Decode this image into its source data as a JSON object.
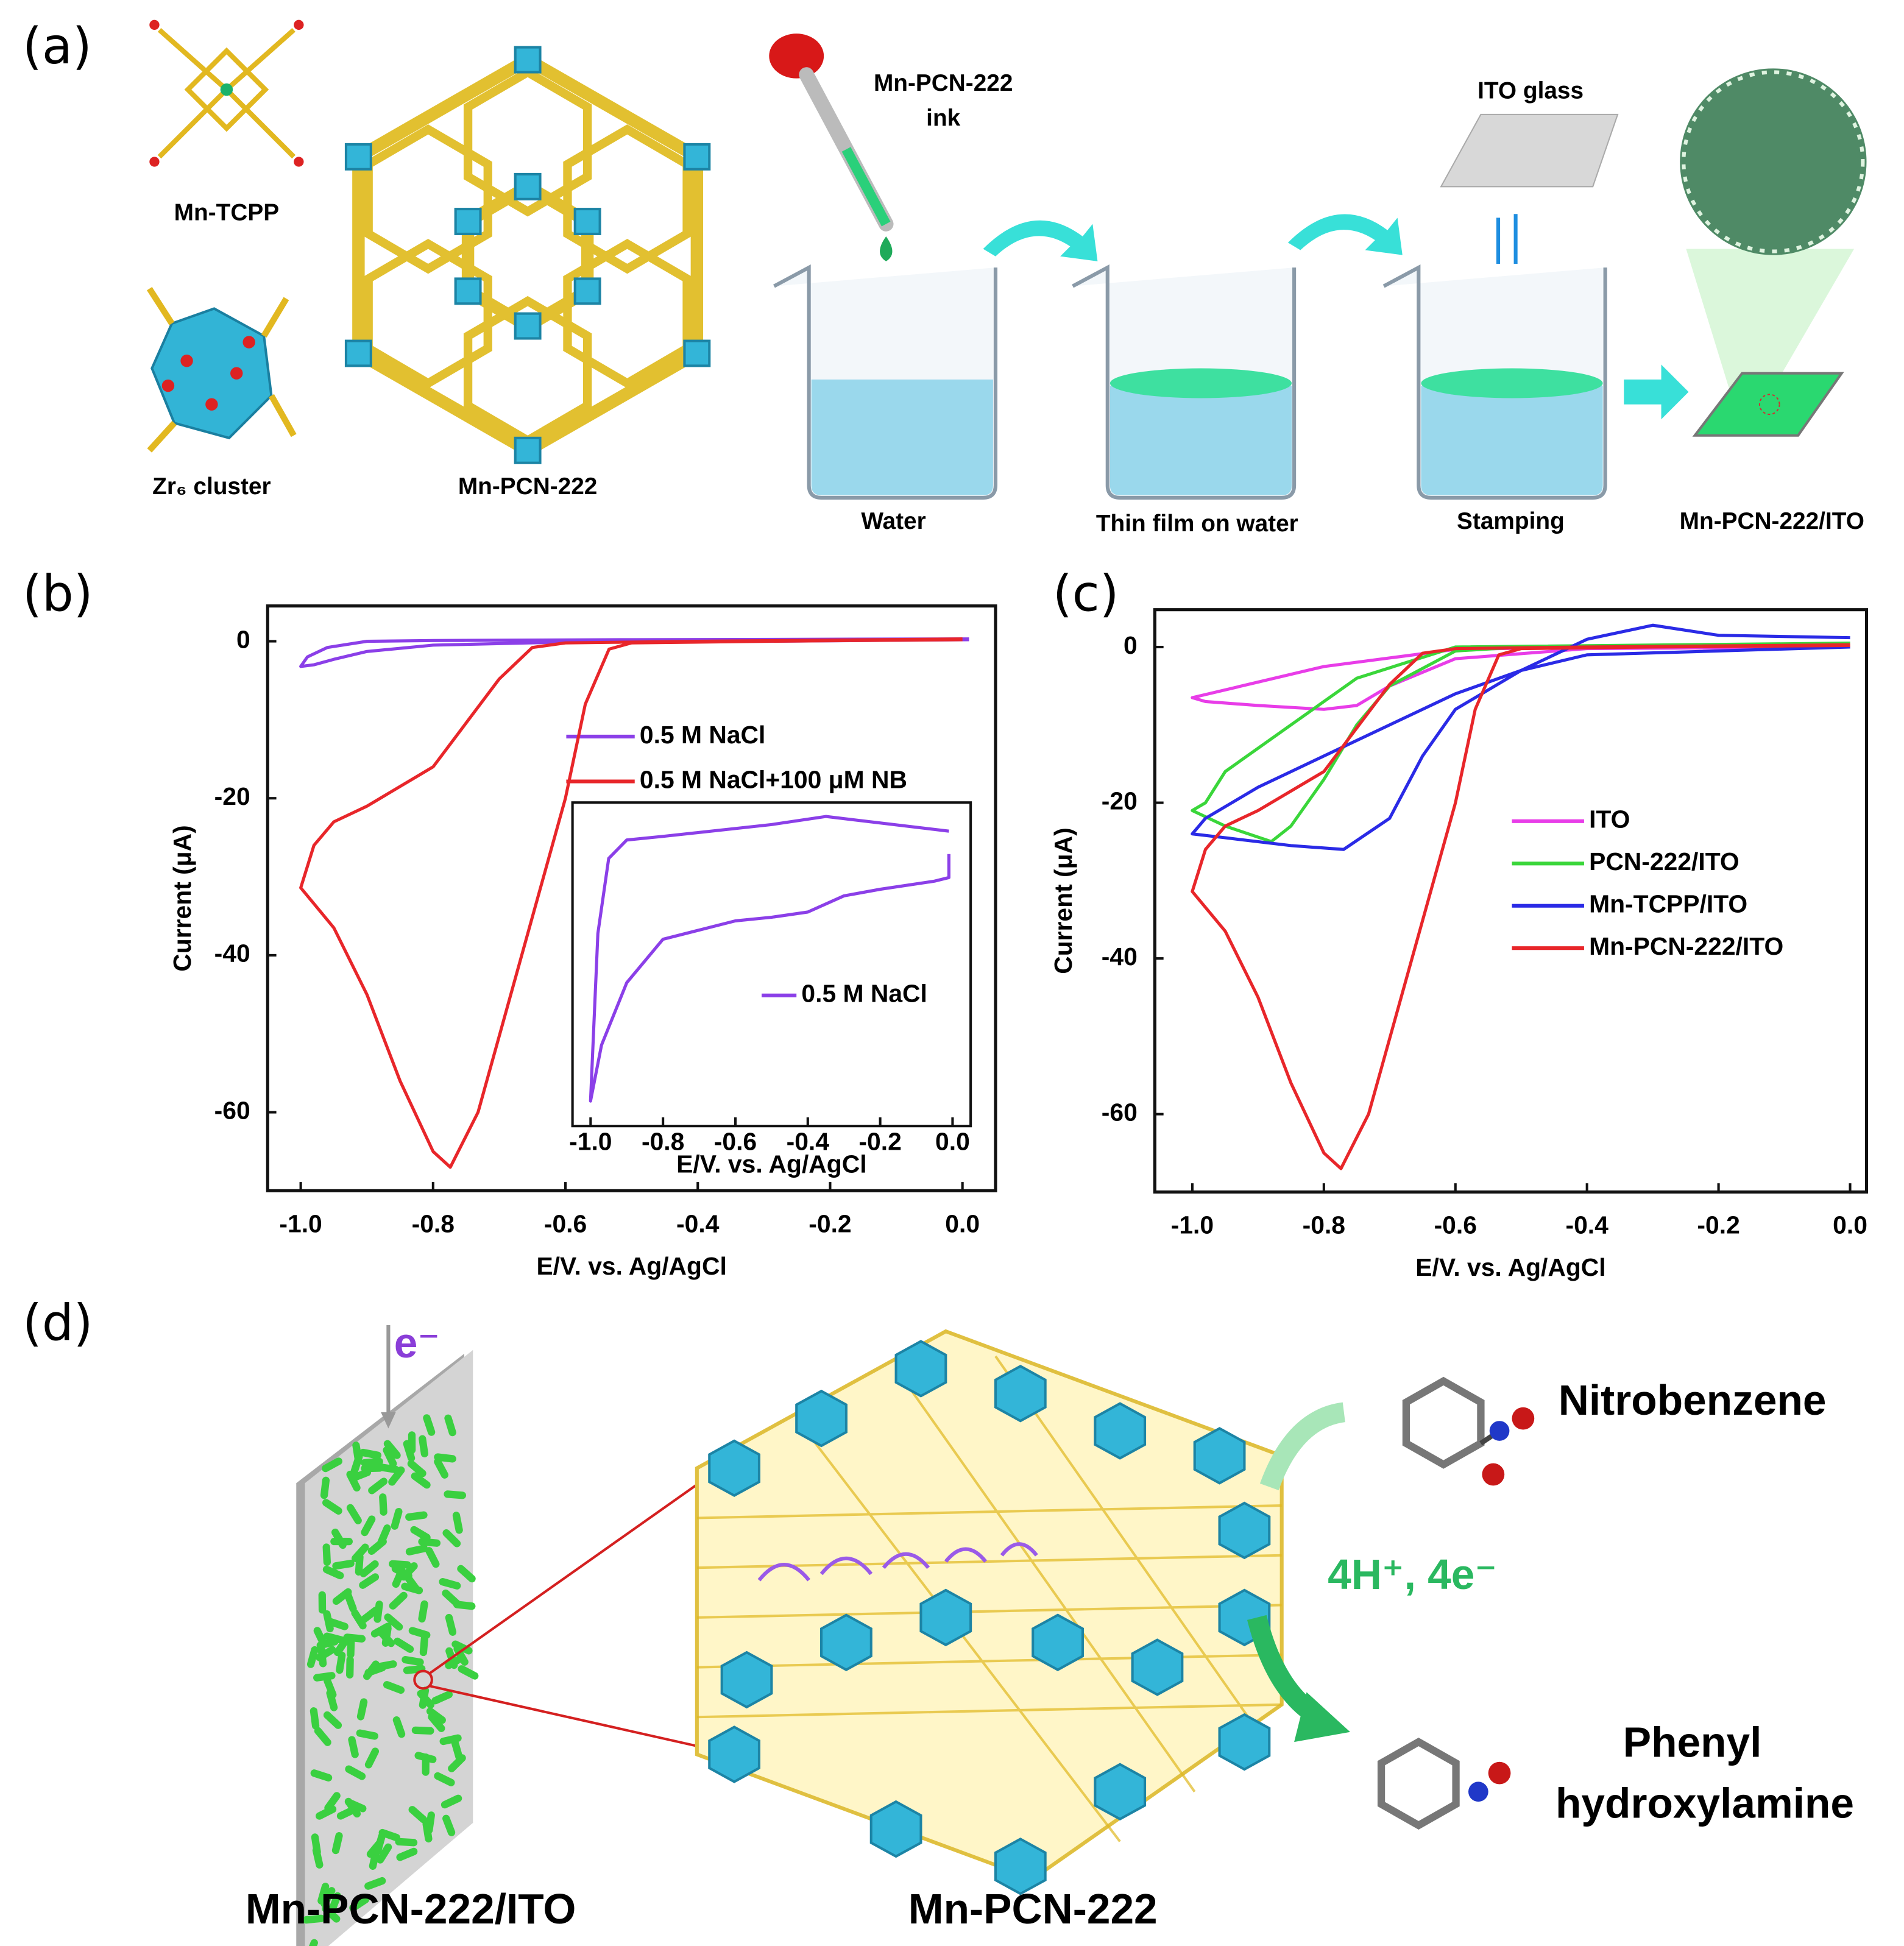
{
  "panel_labels": [
    "(a)",
    "(b)",
    "(c)",
    "(d)"
  ],
  "panel_a": {
    "mn_tcpp": "Mn-TCPP",
    "zr6_cluster": "Zr₆ cluster",
    "mof": "Mn-PCN-222",
    "ink": [
      "Mn-PCN-222",
      "ink"
    ],
    "ito_glass": "ITO glass",
    "steps": [
      "Water",
      "Thin film on water",
      "Stamping",
      "Mn-PCN-222/ITO"
    ]
  },
  "chart_data": [
    {
      "type": "line",
      "xlabel": "E/V. vs. Ag/AgCl",
      "ylabel": "Current (μA)",
      "xlim": [
        -1.05,
        0.05
      ],
      "ylim": [
        -70,
        4.5
      ],
      "xticks": [
        {
          "value": -1,
          "label": "-1.0"
        },
        -0.8,
        -0.6,
        -0.4,
        -0.2,
        {
          "value": 0,
          "label": "0.0"
        }
      ],
      "yticks": [
        0,
        -20,
        -40,
        -60
      ],
      "series": [
        {
          "name": "0.5 M NaCl",
          "color": "#8b3fe8",
          "x": [
            0.01,
            -0.5,
            -0.8,
            -0.9,
            -0.96,
            -0.99,
            -1.0,
            -0.98,
            -0.95,
            -0.9,
            -0.8,
            -0.6,
            -0.3,
            0.01
          ],
          "values": [
            0.3,
            0.2,
            0.1,
            0.0,
            -0.8,
            -2.0,
            -3.2,
            -3.0,
            -2.3,
            -1.3,
            -0.5,
            -0.1,
            0.0,
            0.2
          ]
        },
        {
          "name": "0.5 M NaCl+100 μM NB",
          "color": "#e8262a",
          "x": [
            0.0,
            -0.3,
            -0.5,
            -0.534,
            -0.57,
            -0.6,
            -0.666,
            -0.732,
            -0.774,
            -0.8,
            -0.85,
            -0.9,
            -0.95,
            -1.0,
            -0.98,
            -0.95,
            -0.9,
            -0.8,
            -0.7,
            -0.65,
            -0.6,
            -0.4,
            0.0
          ],
          "values": [
            0.2,
            0.0,
            -0.2,
            -1.0,
            -8.0,
            -20,
            -40,
            -60,
            -67,
            -65,
            -56,
            -45,
            -36.5,
            -31.4,
            -26,
            -23,
            -21,
            -16,
            -4.8,
            -0.8,
            -0.2,
            0.0,
            0.3
          ]
        }
      ]
    },
    {
      "type": "line",
      "xlabel": "E/V. vs. Ag/AgCl",
      "xlim": [
        -1.05,
        0.05
      ],
      "ylim": [
        -3.8,
        0.6
      ],
      "xticks": [
        {
          "value": -1,
          "label": "-1.0"
        },
        -0.8,
        -0.6,
        -0.4,
        -0.2,
        {
          "value": 0,
          "label": "0.0"
        }
      ],
      "series": [
        {
          "name": "0.5 M NaCl",
          "color": "#8b3fe8",
          "x": [
            -0.01,
            -0.35,
            -0.5,
            -0.8,
            -0.9,
            -0.95,
            -0.98,
            -1.0,
            -0.97,
            -0.9,
            -0.8,
            -0.6,
            -0.5,
            -0.4,
            -0.3,
            -0.2,
            -0.05,
            -0.01,
            -0.01
          ],
          "values": [
            0.21,
            0.41,
            0.3,
            0.14,
            0.09,
            -0.16,
            -1.18,
            -3.46,
            -2.7,
            -1.85,
            -1.26,
            -1.01,
            -0.96,
            -0.89,
            -0.67,
            -0.58,
            -0.47,
            -0.42,
            -0.1
          ]
        }
      ]
    },
    {
      "type": "line",
      "xlabel": "E/V. vs. Ag/AgCl",
      "ylabel": "Current (μA)",
      "xlim": [
        -1.057,
        0.025
      ],
      "ylim": [
        -70,
        4.8
      ],
      "xticks": [
        {
          "value": -1,
          "label": "-1.0"
        },
        -0.8,
        -0.6,
        -0.4,
        -0.2,
        {
          "value": 0,
          "label": "0.0"
        }
      ],
      "yticks": [
        0,
        -20,
        -40,
        -60
      ],
      "series": [
        {
          "name": "ITO",
          "color": "#e83de8",
          "x": [
            0.0,
            -0.4,
            -0.6,
            -0.8,
            -0.9,
            -1.0,
            -0.98,
            -0.9,
            -0.8,
            -0.75,
            -0.7,
            -0.6,
            -0.4,
            0.0
          ],
          "values": [
            0.2,
            0.0,
            -0.3,
            -2.5,
            -4.5,
            -6.5,
            -7.0,
            -7.5,
            -8.0,
            -7.5,
            -5.0,
            -1.5,
            -0.2,
            0.0
          ]
        },
        {
          "name": "PCN-222/ITO",
          "color": "#3ad63a",
          "x": [
            0.0,
            -0.5,
            -0.6,
            -0.7,
            -0.75,
            -0.8,
            -0.85,
            -0.88,
            -0.95,
            -1.0,
            -0.98,
            -0.95,
            -0.85,
            -0.75,
            -0.6,
            0.0
          ],
          "values": [
            0.2,
            0.0,
            -0.5,
            -5,
            -10,
            -17,
            -23,
            -25,
            -23,
            -21,
            -20,
            -16,
            -10,
            -4,
            0,
            0.5
          ]
        },
        {
          "name": "Mn-TCPP/ITO",
          "color": "#2a2ae6",
          "x": [
            0.0,
            -0.2,
            -0.3,
            -0.4,
            -0.5,
            -0.6,
            -0.65,
            -0.7,
            -0.77,
            -0.85,
            -0.95,
            -1.0,
            -0.98,
            -0.9,
            -0.8,
            -0.7,
            -0.6,
            -0.5,
            -0.4,
            0.0
          ],
          "values": [
            1.2,
            1.5,
            2.8,
            1.0,
            -3,
            -8,
            -14,
            -22,
            -26,
            -25.5,
            -24.5,
            -24,
            -22,
            -18,
            -14,
            -10,
            -6,
            -3,
            -1,
            0
          ]
        },
        {
          "name": "Mn-PCN-222/ITO",
          "color": "#e8262a",
          "x": [
            0.0,
            -0.3,
            -0.5,
            -0.534,
            -0.57,
            -0.6,
            -0.666,
            -0.732,
            -0.774,
            -0.8,
            -0.85,
            -0.9,
            -0.95,
            -1.0,
            -0.98,
            -0.95,
            -0.9,
            -0.8,
            -0.7,
            -0.65,
            -0.6,
            -0.4,
            0.0
          ],
          "values": [
            0.2,
            0.0,
            -0.2,
            -1.0,
            -8.0,
            -20,
            -40,
            -60,
            -67,
            -65,
            -56,
            -45,
            -36.5,
            -31.4,
            -26,
            -23,
            -21,
            -16,
            -4.8,
            -0.8,
            -0.2,
            0.0,
            0.3
          ]
        }
      ]
    }
  ],
  "panel_d": {
    "electron": "e⁻",
    "nitrobenzene": "Nitrobenzene",
    "reaction": "4H⁺, 4e⁻",
    "product": [
      "Phenyl",
      "hydroxylamine"
    ],
    "electrode": "Mn-PCN-222/ITO",
    "mof": "Mn-PCN-222"
  }
}
